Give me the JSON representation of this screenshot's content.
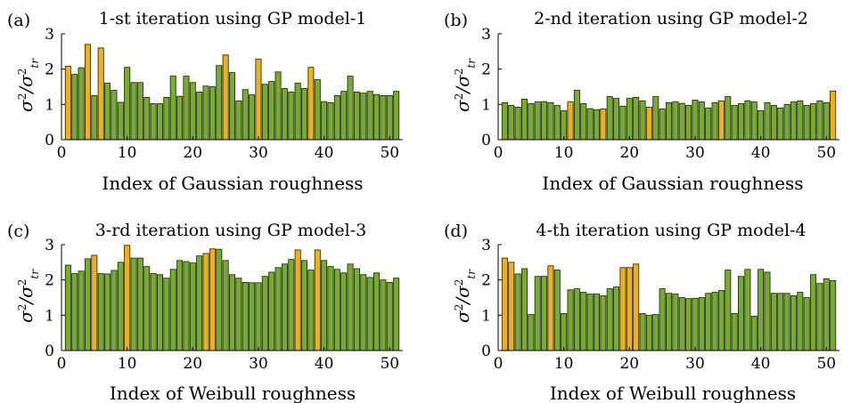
{
  "colors": {
    "normal": "#77ac30",
    "highlight": "#edb120"
  },
  "chart_data": [
    {
      "type": "bar",
      "panel_label": "(a)",
      "title": "1-st iteration using GP model-1",
      "xlabel": "Index of Gaussian roughness",
      "ylabel": "σ²/σ²tr",
      "xlim": [
        0,
        52
      ],
      "ylim": [
        0,
        3
      ],
      "xticks": [
        0,
        10,
        20,
        30,
        40,
        50
      ],
      "yticks": [
        0,
        1,
        2,
        3
      ],
      "x": [
        1,
        2,
        3,
        4,
        5,
        6,
        7,
        8,
        9,
        10,
        11,
        12,
        13,
        14,
        15,
        16,
        17,
        18,
        19,
        20,
        21,
        22,
        23,
        24,
        25,
        26,
        27,
        28,
        29,
        30,
        31,
        32,
        33,
        34,
        35,
        36,
        37,
        38,
        39,
        40,
        41,
        42,
        43,
        44,
        45,
        46,
        47,
        48,
        49,
        50,
        51
      ],
      "values": [
        2.08,
        1.85,
        2.04,
        2.7,
        1.25,
        2.6,
        1.6,
        1.4,
        1.06,
        2.05,
        1.62,
        1.62,
        1.2,
        1.02,
        1.02,
        1.2,
        1.8,
        1.23,
        1.8,
        1.62,
        1.35,
        1.52,
        1.5,
        2.1,
        2.4,
        1.9,
        1.1,
        1.42,
        1.27,
        2.28,
        1.57,
        1.65,
        1.92,
        1.45,
        1.35,
        1.6,
        1.45,
        2.05,
        1.7,
        1.08,
        1.05,
        1.25,
        1.37,
        1.8,
        1.35,
        1.32,
        1.37,
        1.28,
        1.25,
        1.25,
        1.37
      ],
      "highlighted": [
        1,
        4,
        6,
        25,
        30,
        38
      ]
    },
    {
      "type": "bar",
      "panel_label": "(b)",
      "title": "2-nd iteration using GP model-2",
      "xlabel": "Index of Gaussian roughness",
      "ylabel": "σ²/σ²tr",
      "xlim": [
        0,
        52
      ],
      "ylim": [
        0,
        3
      ],
      "xticks": [
        0,
        10,
        20,
        30,
        40,
        50
      ],
      "yticks": [
        0,
        1,
        2,
        3
      ],
      "x": [
        1,
        2,
        3,
        4,
        5,
        6,
        7,
        8,
        9,
        10,
        11,
        12,
        13,
        14,
        15,
        16,
        17,
        18,
        19,
        20,
        21,
        22,
        23,
        24,
        25,
        26,
        27,
        28,
        29,
        30,
        31,
        32,
        33,
        34,
        35,
        36,
        37,
        38,
        39,
        40,
        41,
        42,
        43,
        44,
        45,
        46,
        47,
        48,
        49,
        50,
        51
      ],
      "values": [
        1.05,
        0.97,
        0.92,
        1.15,
        1.02,
        1.07,
        1.08,
        1.05,
        0.97,
        0.82,
        1.07,
        1.4,
        1.02,
        0.88,
        0.85,
        0.87,
        1.22,
        1.17,
        0.95,
        1.17,
        1.2,
        1.1,
        0.92,
        1.22,
        0.87,
        1.05,
        1.07,
        1.03,
        0.97,
        1.12,
        1.07,
        0.9,
        1.05,
        1.1,
        1.22,
        0.97,
        1.02,
        1.1,
        1.07,
        0.82,
        1.05,
        0.97,
        0.9,
        1.0,
        1.07,
        1.1,
        0.97,
        1.02,
        1.1,
        1.05,
        1.38
      ],
      "highlighted": [
        11,
        16,
        23,
        34,
        51
      ]
    },
    {
      "type": "bar",
      "panel_label": "(c)",
      "title": "3-rd iteration using GP model-3",
      "xlabel": "Index of Weibull roughness",
      "ylabel": "σ²/σ²tr",
      "xlim": [
        0,
        52
      ],
      "ylim": [
        0,
        3
      ],
      "xticks": [
        0,
        10,
        20,
        30,
        40,
        50
      ],
      "yticks": [
        0,
        1,
        2,
        3
      ],
      "x": [
        1,
        2,
        3,
        4,
        5,
        6,
        7,
        8,
        9,
        10,
        11,
        12,
        13,
        14,
        15,
        16,
        17,
        18,
        19,
        20,
        21,
        22,
        23,
        24,
        25,
        26,
        27,
        28,
        29,
        30,
        31,
        32,
        33,
        34,
        35,
        36,
        37,
        38,
        39,
        40,
        41,
        42,
        43,
        44,
        45,
        46,
        47,
        48,
        49,
        50,
        51
      ],
      "values": [
        2.42,
        2.18,
        2.25,
        2.6,
        2.7,
        2.18,
        2.17,
        2.27,
        2.5,
        2.98,
        2.62,
        2.62,
        2.38,
        2.18,
        2.15,
        2.05,
        2.3,
        2.55,
        2.52,
        2.48,
        2.68,
        2.75,
        2.88,
        2.87,
        2.55,
        2.15,
        2.05,
        1.93,
        1.92,
        1.92,
        2.1,
        2.22,
        2.35,
        2.45,
        2.58,
        2.85,
        2.55,
        2.28,
        2.85,
        2.55,
        2.38,
        2.3,
        2.2,
        2.45,
        2.32,
        2.15,
        2.07,
        2.2,
        2.0,
        1.93,
        2.05
      ],
      "highlighted": [
        5,
        10,
        22,
        23,
        36,
        39
      ]
    },
    {
      "type": "bar",
      "panel_label": "(d)",
      "title": "4-th iteration using GP model-4",
      "xlabel": "Index of Weibull roughness",
      "ylabel": "σ²/σ²tr",
      "xlim": [
        0,
        52
      ],
      "ylim": [
        0,
        3
      ],
      "xticks": [
        0,
        10,
        20,
        30,
        40,
        50
      ],
      "yticks": [
        0,
        1,
        2,
        3
      ],
      "x": [
        1,
        2,
        3,
        4,
        5,
        6,
        7,
        8,
        9,
        10,
        11,
        12,
        13,
        14,
        15,
        16,
        17,
        18,
        19,
        20,
        21,
        22,
        23,
        24,
        25,
        26,
        27,
        28,
        29,
        30,
        31,
        32,
        33,
        34,
        35,
        36,
        37,
        38,
        39,
        40,
        41,
        42,
        43,
        44,
        45,
        46,
        47,
        48,
        49,
        50,
        51
      ],
      "values": [
        2.62,
        2.5,
        2.17,
        2.32,
        1.02,
        2.1,
        2.1,
        2.4,
        2.28,
        1.05,
        1.72,
        1.75,
        1.65,
        1.6,
        1.6,
        1.55,
        1.75,
        1.8,
        2.35,
        2.35,
        2.45,
        1.05,
        1.0,
        1.02,
        1.75,
        1.62,
        1.6,
        1.5,
        1.47,
        1.48,
        1.5,
        1.62,
        1.65,
        1.7,
        2.28,
        1.05,
        2.1,
        2.3,
        0.97,
        2.3,
        2.22,
        1.62,
        1.62,
        1.62,
        1.55,
        1.65,
        1.5,
        2.15,
        1.9,
        2.03,
        1.98
      ],
      "highlighted": [
        1,
        2,
        8,
        19,
        20,
        21
      ]
    }
  ]
}
